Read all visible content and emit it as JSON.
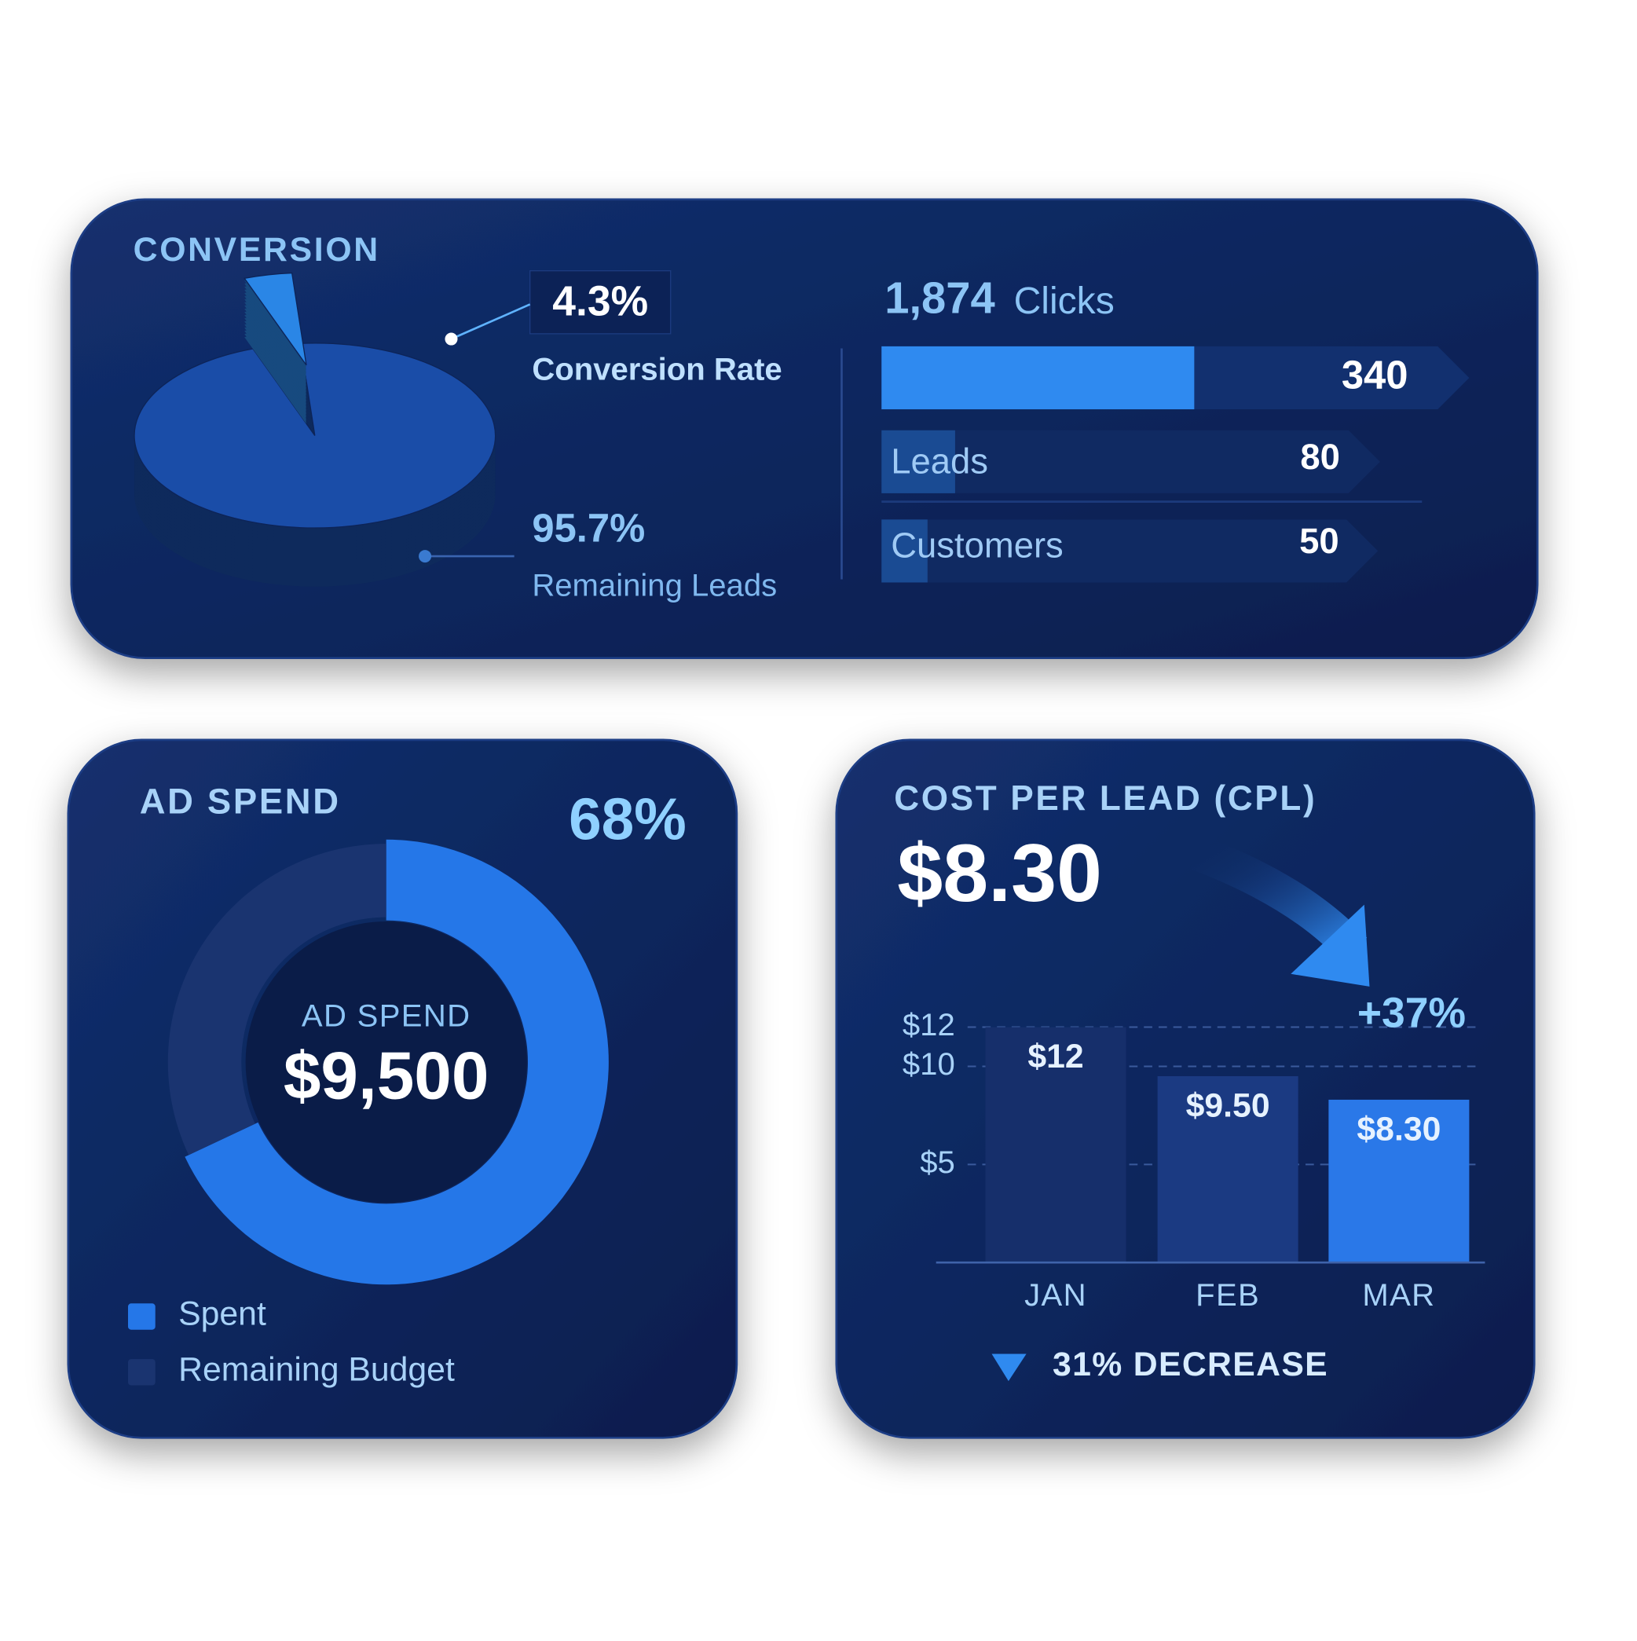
{
  "chart_data": [
    {
      "type": "pie",
      "title": "CONVERSION",
      "categories": [
        "Conversion Rate",
        "Remaining Leads"
      ],
      "values": [
        4.3,
        95.7
      ],
      "value_labels": [
        "4.3%",
        "95.7%"
      ],
      "colors": [
        "#2a86e6",
        "#1a4da8"
      ]
    },
    {
      "type": "funnel",
      "total_label": "1,874",
      "unit_label": "Clicks",
      "categories": [
        null,
        "Leads",
        "Customers"
      ],
      "values": [
        340,
        80,
        50
      ],
      "color": "#2f8af0"
    },
    {
      "type": "donut",
      "title": "AD SPEND",
      "center_label": "AD SPEND",
      "center_value": "$9,500",
      "categories": [
        "Spent",
        "Remaining Budget"
      ],
      "values": [
        68,
        32
      ],
      "value_labels": [
        "68%",
        null
      ],
      "colors": [
        "#2577e8",
        "#1a3470"
      ]
    },
    {
      "type": "bar",
      "title": "COST PER LEAD (CPL)",
      "headline": "$8.30",
      "categories": [
        "JAN",
        "FEB",
        "MAR"
      ],
      "values": [
        12,
        9.5,
        8.3
      ],
      "value_labels": [
        "$12",
        "$9.50",
        "$8.30"
      ],
      "colors": [
        "#162f6b",
        "#1b3a82",
        "#2a78e8"
      ],
      "ylim": [
        0,
        13
      ],
      "yticks": [
        {
          "value": 5,
          "label": "$5"
        },
        {
          "value": 10,
          "label": "$10"
        },
        {
          "value": 12,
          "label": "$12"
        }
      ],
      "grid": true,
      "annotations": [
        "+37%",
        "31% DECREASE"
      ]
    }
  ]
}
